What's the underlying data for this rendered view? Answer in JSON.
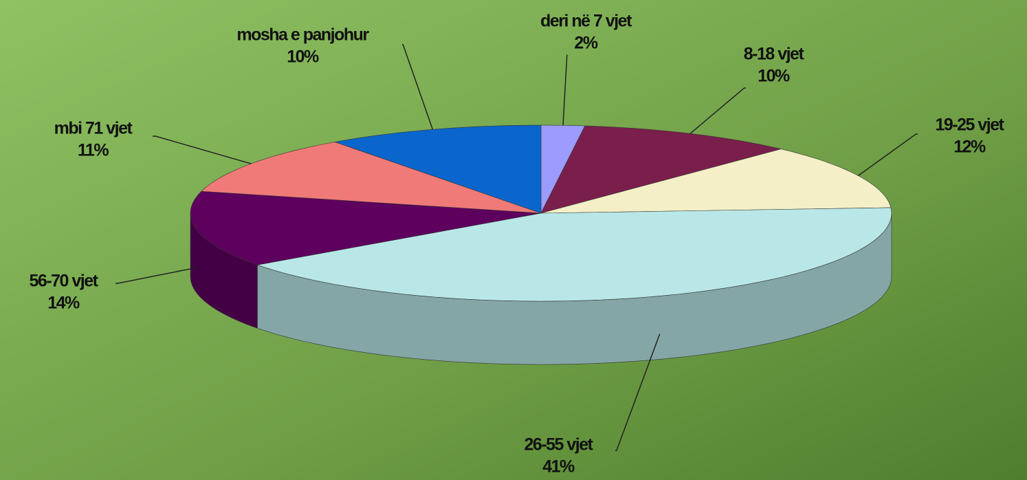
{
  "chart_data": {
    "type": "pie",
    "categories": [
      "deri në 7 vjet",
      "8-18 vjet",
      "19-25 vjet",
      "26-55 vjet",
      "56-70 vjet",
      "mbi 71 vjet",
      "mosha e panjohur"
    ],
    "values": [
      2,
      10,
      12,
      41,
      14,
      11,
      10
    ],
    "value_labels": [
      "2%",
      "10%",
      "12%",
      "41%",
      "14%",
      "11%",
      "10%"
    ],
    "colors": [
      "#9c9cff",
      "#7a1f4c",
      "#f4efc6",
      "#b9e7e7",
      "#5e005e",
      "#f07a78",
      "#0a66cc"
    ]
  }
}
